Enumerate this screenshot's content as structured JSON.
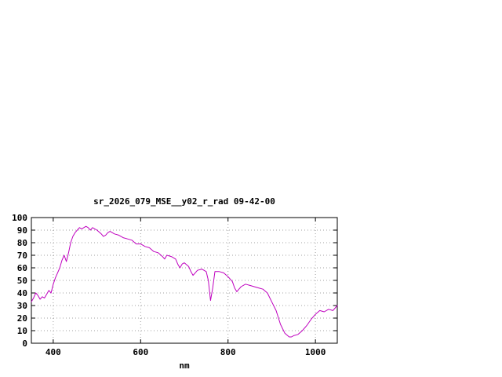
{
  "page": {
    "background": "#ffffff"
  },
  "chart_data": {
    "type": "line",
    "title": "sr_2026_079_MSE__y02_r_rad 09-42-00",
    "xlabel": "nm",
    "ylabel": "",
    "xlim": [
      350,
      1050
    ],
    "ylim": [
      0,
      100
    ],
    "x_ticks": [
      400,
      600,
      800,
      1000
    ],
    "y_ticks": [
      0,
      10,
      20,
      30,
      40,
      50,
      60,
      70,
      80,
      90,
      100
    ],
    "grid": true,
    "legend": "none",
    "colors": {
      "line": "#bf00bf",
      "grid": "#a0a0a0",
      "frame": "#000000",
      "text": "#000000",
      "background": "#ffffff"
    },
    "series": [
      {
        "name": "sr_2026_079_MSE__y02_r_rad",
        "x": [
          350,
          355,
          360,
          365,
          370,
          375,
          380,
          385,
          390,
          395,
          400,
          405,
          410,
          415,
          420,
          425,
          430,
          435,
          440,
          445,
          450,
          455,
          460,
          465,
          470,
          475,
          480,
          485,
          490,
          495,
          500,
          510,
          515,
          520,
          525,
          530,
          540,
          550,
          560,
          570,
          580,
          590,
          600,
          610,
          620,
          630,
          640,
          650,
          655,
          660,
          670,
          680,
          685,
          690,
          695,
          700,
          710,
          715,
          720,
          725,
          730,
          740,
          750,
          755,
          760,
          765,
          770,
          780,
          790,
          800,
          810,
          815,
          820,
          825,
          830,
          840,
          850,
          860,
          870,
          880,
          890,
          900,
          910,
          920,
          930,
          940,
          945,
          950,
          960,
          970,
          980,
          990,
          1000,
          1010,
          1020,
          1030,
          1040,
          1050
        ],
        "y": [
          33,
          36,
          40,
          38,
          35,
          37,
          36,
          39,
          42,
          40,
          47,
          52,
          56,
          60,
          66,
          70,
          65,
          72,
          80,
          85,
          88,
          90,
          92,
          91,
          92,
          93,
          92,
          90,
          92,
          91,
          90,
          87,
          85,
          86,
          88,
          89,
          87,
          86,
          84,
          83,
          82,
          79,
          79,
          77,
          76,
          73,
          72,
          69,
          67,
          70,
          69,
          67,
          63,
          60,
          63,
          64,
          61,
          57,
          54,
          56,
          58,
          59,
          57,
          50,
          34,
          44,
          57,
          57,
          56,
          53,
          49,
          44,
          41,
          43,
          45,
          47,
          46,
          45,
          44,
          43,
          40,
          33,
          26,
          15,
          8,
          5,
          5,
          6,
          7,
          10,
          14,
          19,
          23,
          26,
          25,
          27,
          26,
          30
        ]
      }
    ]
  }
}
